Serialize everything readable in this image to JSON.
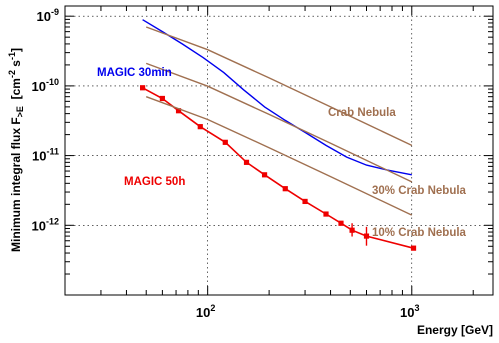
{
  "chart_data": {
    "type": "line",
    "xlabel": "Energy [GeV]",
    "ylabel": {
      "main": "Minimum integral flux F",
      "sub": ">E",
      "units_open": "  [cm",
      "sup1": "-2",
      "mid": " s",
      "sup2": "-1",
      "units_close": "]"
    },
    "x_scale": "log",
    "y_scale": "log",
    "xlim": [
      20,
      2500
    ],
    "ylim": [
      1e-13,
      1.4e-09
    ],
    "grid": true,
    "x_ticks": [
      {
        "value": 100,
        "base": "10",
        "exp": "2"
      },
      {
        "value": 1000,
        "base": "10",
        "exp": "3"
      }
    ],
    "y_ticks": [
      {
        "value": 1e-09,
        "base": "10",
        "exp": "-9"
      },
      {
        "value": 1e-10,
        "base": "10",
        "exp": "-10"
      },
      {
        "value": 1e-11,
        "base": "10",
        "exp": "-11"
      },
      {
        "value": 1e-12,
        "base": "10",
        "exp": "-12"
      }
    ],
    "series": [
      {
        "name": "MAGIC 30min",
        "color": "#0000ee",
        "marker": "none",
        "x": [
          48,
          60,
          75,
          95,
          120,
          150,
          190,
          240,
          300,
          380,
          480,
          600,
          760,
          1000
        ],
        "y": [
          8.9e-10,
          6e-10,
          4e-10,
          2.55e-10,
          1.55e-10,
          8.8e-11,
          5e-11,
          3.2e-11,
          2.15e-11,
          1.4e-11,
          9.5e-12,
          7.3e-12,
          6.2e-12,
          5.3e-12
        ]
      },
      {
        "name": "MAGIC 50h",
        "color": "#ee0000",
        "marker": "square",
        "x": [
          48,
          60,
          72,
          92,
          122,
          155,
          190,
          240,
          300,
          380,
          450,
          510,
          600,
          1020
        ],
        "y": [
          9.4e-11,
          6.6e-11,
          4.4e-11,
          2.6e-11,
          1.55e-11,
          8e-12,
          5.3e-12,
          3.35e-12,
          2.2e-12,
          1.45e-12,
          1.07e-12,
          8.5e-13,
          7e-13,
          4.7e-13
        ],
        "yerr_upper": [
          0,
          0,
          0,
          0,
          0,
          0,
          0,
          0,
          0,
          0,
          0,
          2.2e-13,
          2.5e-13,
          0
        ],
        "yerr_lower": [
          0,
          0,
          0,
          0,
          0,
          0,
          0,
          0,
          0,
          0,
          0,
          1.6e-13,
          1.9e-13,
          0
        ]
      },
      {
        "name": "Crab Nebula",
        "color": "#a07050",
        "marker": "none",
        "x": [
          50,
          100,
          200,
          400,
          1000
        ],
        "y": [
          7e-10,
          3.3e-10,
          1.3e-10,
          5e-11,
          1.4e-11
        ]
      },
      {
        "name": "30% Crab Nebula",
        "color": "#a07050",
        "marker": "none",
        "x": [
          50,
          100,
          200,
          400,
          1000
        ],
        "y": [
          2.1e-10,
          9.9e-11,
          3.9e-11,
          1.5e-11,
          4.2e-12
        ]
      },
      {
        "name": "10% Crab Nebula",
        "color": "#a07050",
        "marker": "none",
        "x": [
          50,
          100,
          200,
          400,
          1000
        ],
        "y": [
          7e-11,
          3.3e-11,
          1.3e-11,
          5e-12,
          1.4e-12
        ]
      }
    ],
    "annotations": [
      {
        "key": "magic30",
        "text": "MAGIC 30min",
        "color": "#0000ee"
      },
      {
        "key": "magic50",
        "text": "MAGIC 50h",
        "color": "#ee0000"
      },
      {
        "key": "crab",
        "text": "Crab Nebula",
        "color": "#a07050"
      },
      {
        "key": "crab30",
        "text": "30% Crab Nebula",
        "color": "#a07050"
      },
      {
        "key": "crab10",
        "text": "10% Crab Nebula",
        "color": "#a07050"
      }
    ]
  }
}
